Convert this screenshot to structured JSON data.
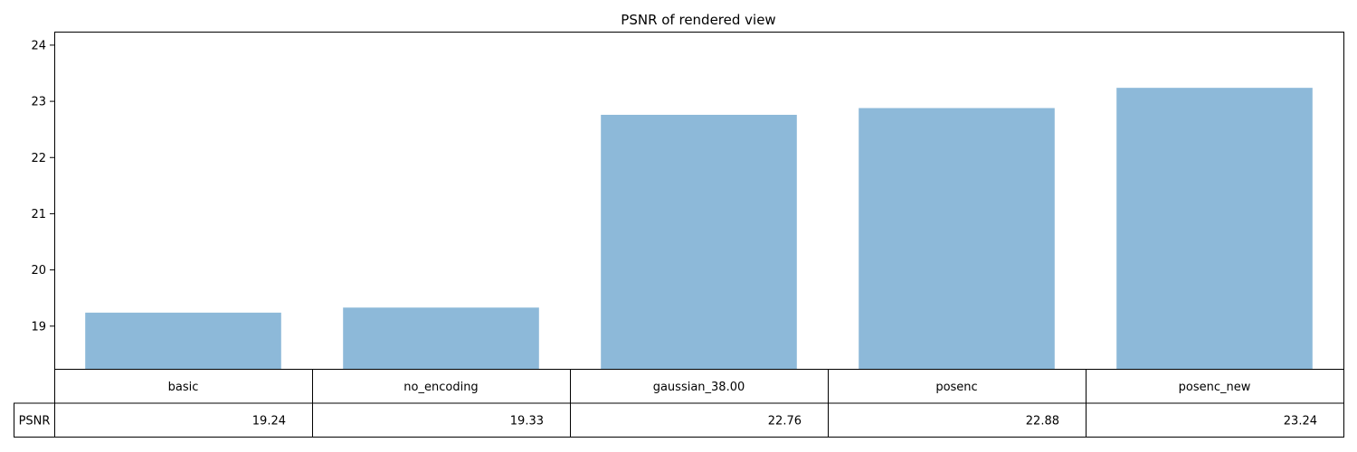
{
  "chart_data": {
    "type": "bar",
    "title": "PSNR of rendered view",
    "categories": [
      "basic",
      "no_encoding",
      "gaussian_38.00",
      "posenc",
      "posenc_new"
    ],
    "series": [
      {
        "name": "PSNR",
        "values": [
          19.24,
          19.33,
          22.76,
          22.88,
          23.24
        ]
      }
    ],
    "value_labels": [
      "19.24",
      "19.33",
      "22.76",
      "22.88",
      "23.24"
    ],
    "ylim": [
      18.24,
      24.24
    ],
    "yticks": [
      19,
      20,
      21,
      22,
      23,
      24
    ],
    "xlabel": "",
    "ylabel": "",
    "grid": false,
    "legend": "none",
    "bar_color": "#8db9d9",
    "table": {
      "row_label": "PSNR",
      "col_labels": [
        "basic",
        "no_encoding",
        "gaussian_38.00",
        "posenc",
        "posenc_new"
      ],
      "cells": [
        "19.24",
        "19.33",
        "22.76",
        "22.88",
        "23.24"
      ]
    }
  }
}
